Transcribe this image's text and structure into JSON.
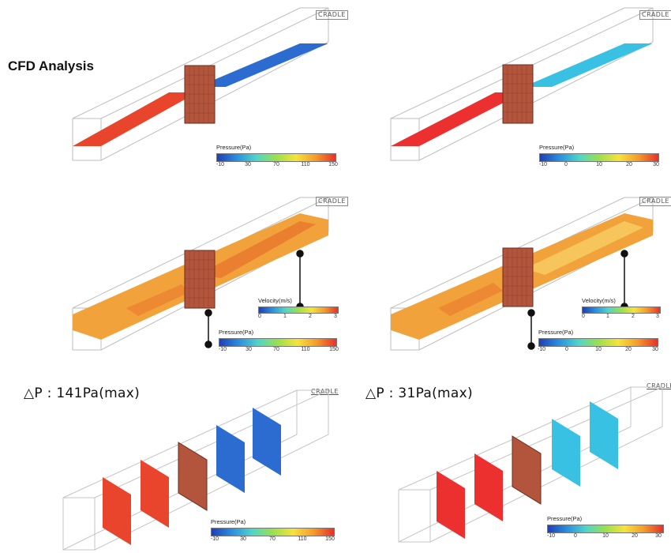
{
  "page_title": "CFD Analysis",
  "brand": "CRADLE",
  "colors": {
    "red": "#e8452c",
    "red_bright": "#ec2f2f",
    "blue": "#2c6cd0",
    "cyan": "#38c1e3",
    "orange": "#f2a23a",
    "screen": "#b3553c"
  },
  "colorbars": {
    "pressure_150": {
      "title": "Pressure(Pa)",
      "ticks": [
        "-10",
        "30",
        "70",
        "110",
        "150"
      ]
    },
    "pressure_30": {
      "title": "Pressure(Pa)",
      "ticks": [
        "-10",
        "0",
        "10",
        "20",
        "30"
      ]
    },
    "velocity": {
      "title": "Velocity(m/s)",
      "ticks": [
        "0",
        "1",
        "2",
        "3"
      ]
    }
  },
  "delta_p": {
    "left": "△P : 141Pa(max)",
    "right": "△P : 31Pa(max)"
  }
}
